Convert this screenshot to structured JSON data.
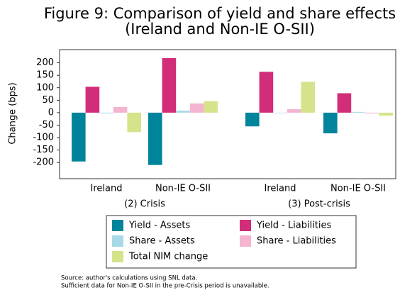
{
  "chart_data": {
    "type": "bar",
    "title": "Figure 9: Comparison of yield and share effects (Ireland and Non-IE O-SII)",
    "y_label": "Change (bps)",
    "categories": [
      "Ireland",
      "Non-IE O-SII",
      "Ireland",
      "Non-IE O-SII"
    ],
    "periods": [
      "(2) Crisis",
      "(3) Post-crisis"
    ],
    "series": [
      {
        "name": "Yield - Assets",
        "color": "#00849b",
        "values": [
          -196,
          -210,
          -55,
          -83
        ]
      },
      {
        "name": "Yield - Liabilities",
        "color": "#d12d79",
        "values": [
          104,
          219,
          164,
          78
        ]
      },
      {
        "name": "Share - Assets",
        "color": "#a7d9e8",
        "values": [
          -3,
          8,
          -2,
          3
        ]
      },
      {
        "name": "Share - Liabilities",
        "color": "#f3b5d0",
        "values": [
          23,
          37,
          14,
          -3
        ]
      },
      {
        "name": "Total NIM change",
        "color": "#d6e38a",
        "values": [
          -78,
          46,
          124,
          -12
        ]
      }
    ],
    "ylim": [
      -265,
      253
    ],
    "yticks": [
      200,
      150,
      100,
      50,
      0,
      -50,
      -100,
      -150,
      -200
    ],
    "notes": [
      "Source: author's calculations using SNL data.",
      "Sufficient data for Non-IE O-SII in the pre-Crisis period is unavailable."
    ]
  }
}
